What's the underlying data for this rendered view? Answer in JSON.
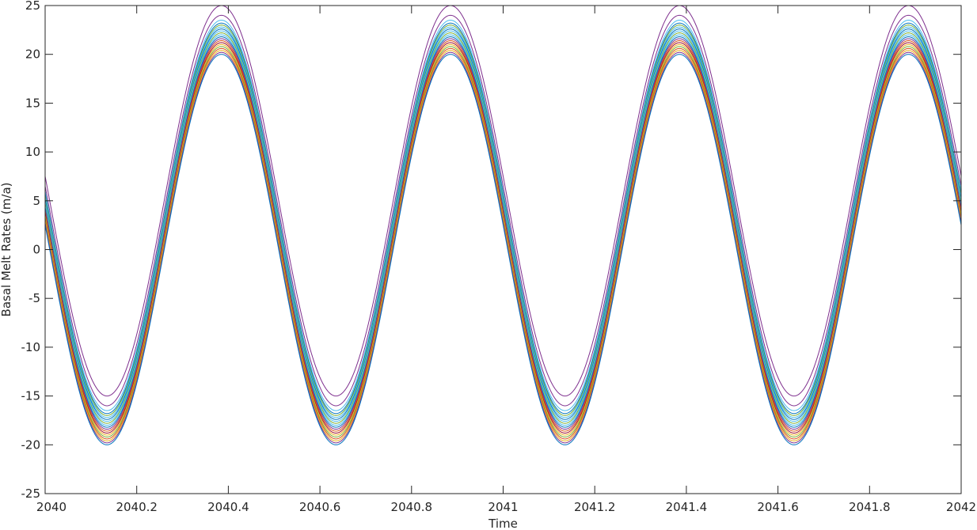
{
  "chart_data": {
    "type": "line",
    "title": "",
    "xlabel": "Time",
    "ylabel": "Basal Melt Rates (m/a)",
    "xlim": [
      2040,
      2042
    ],
    "ylim": [
      -25,
      25
    ],
    "xticks": [
      2040,
      2040.2,
      2040.4,
      2040.6,
      2040.8,
      2041,
      2041.2,
      2041.4,
      2041.6,
      2041.8,
      2042
    ],
    "xtick_labels": [
      "2040",
      "2040.2",
      "2040.4",
      "2040.6",
      "2040.8",
      "2041",
      "2041.2",
      "2041.4",
      "2041.6",
      "2041.8",
      "2042"
    ],
    "yticks": [
      -25,
      -20,
      -15,
      -10,
      -5,
      0,
      5,
      10,
      15,
      20,
      25
    ],
    "ytick_labels": [
      "-25",
      "-20",
      "-15",
      "-10",
      "-5",
      "0",
      "5",
      "10",
      "15",
      "20",
      "25"
    ],
    "grid": false,
    "box": true,
    "legend": "none",
    "period_years": 0.5,
    "peak_times": [
      2040.385,
      2040.885,
      2041.385,
      2041.885
    ],
    "trough_times": [
      2040.135,
      2040.635,
      2041.135,
      2041.635
    ],
    "series": [
      {
        "color": "#7e2f8e",
        "max": 25.0,
        "min": -15.0
      },
      {
        "color": "#7e2f8e",
        "max": 24.0,
        "min": -16.0
      },
      {
        "color": "#4dbeee",
        "max": 23.5,
        "min": -16.5
      },
      {
        "color": "#0072bd",
        "max": 23.2,
        "min": -16.8
      },
      {
        "color": "#77ac30",
        "max": 23.0,
        "min": -17.0
      },
      {
        "color": "#4dbeee",
        "max": 22.8,
        "min": -17.2
      },
      {
        "color": "#0072bd",
        "max": 22.6,
        "min": -17.4
      },
      {
        "color": "#4dbeee",
        "max": 22.4,
        "min": -17.6
      },
      {
        "color": "#77ac30",
        "max": 22.2,
        "min": -17.8
      },
      {
        "color": "#4dbeee",
        "max": 22.0,
        "min": -18.0
      },
      {
        "color": "#0072bd",
        "max": 21.8,
        "min": -18.2
      },
      {
        "color": "#7e2f8e",
        "max": 21.6,
        "min": -18.4
      },
      {
        "color": "#d95319",
        "max": 21.4,
        "min": -18.6
      },
      {
        "color": "#a2142f",
        "max": 21.2,
        "min": -18.8
      },
      {
        "color": "#edb120",
        "max": 21.0,
        "min": -19.0
      },
      {
        "color": "#77ac30",
        "max": 20.8,
        "min": -19.2
      },
      {
        "color": "#d95319",
        "max": 20.6,
        "min": -19.4
      },
      {
        "color": "#edb120",
        "max": 20.4,
        "min": -19.6
      },
      {
        "color": "#7e2f8e",
        "max": 20.2,
        "min": -19.8
      },
      {
        "color": "#0072bd",
        "max": 20.0,
        "min": -20.0
      }
    ]
  }
}
